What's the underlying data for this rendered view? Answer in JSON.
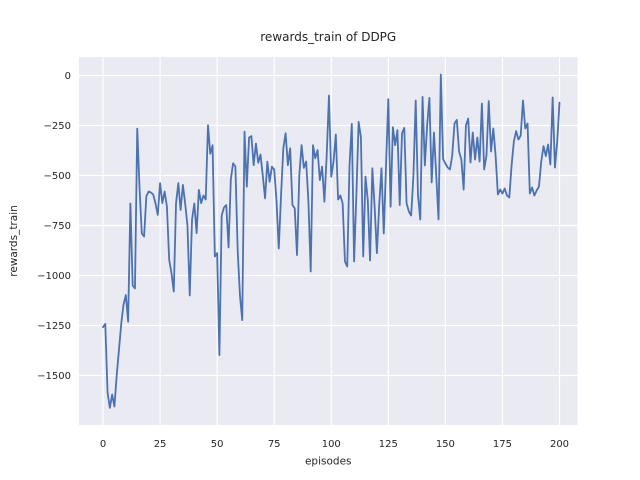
{
  "chart_data": {
    "type": "line",
    "title": "rewards_train of DDPG",
    "xlabel": "episodes",
    "ylabel": "rewards_train",
    "x_tick_labels": [
      "0",
      "25",
      "50",
      "75",
      "100",
      "125",
      "150",
      "175",
      "200"
    ],
    "x_tick_values": [
      0,
      25,
      50,
      75,
      100,
      125,
      150,
      175,
      200
    ],
    "y_tick_labels": [
      "0",
      "−250",
      "−500",
      "−750",
      "−1000",
      "−1250",
      "−1500"
    ],
    "y_tick_values": [
      0,
      -250,
      -500,
      -750,
      -1000,
      -1250,
      -1500
    ],
    "xlim": [
      -10,
      210
    ],
    "ylim": [
      -1750,
      90
    ],
    "grid": true,
    "legend": null,
    "x_start": 0,
    "x_step": 1,
    "series": [
      {
        "name": "rewards_train",
        "values": [
          -1258,
          -1242,
          -1585,
          -1662,
          -1595,
          -1655,
          -1500,
          -1370,
          -1240,
          -1145,
          -1098,
          -1231,
          -640,
          -1050,
          -1065,
          -266,
          -560,
          -790,
          -805,
          -603,
          -580,
          -585,
          -595,
          -640,
          -697,
          -538,
          -638,
          -580,
          -655,
          -922,
          -988,
          -1080,
          -638,
          -538,
          -672,
          -547,
          -640,
          -750,
          -1100,
          -720,
          -640,
          -788,
          -572,
          -638,
          -600,
          -620,
          -249,
          -391,
          -349,
          -905,
          -888,
          -1398,
          -700,
          -660,
          -648,
          -860,
          -520,
          -439,
          -455,
          -873,
          -1100,
          -1223,
          -281,
          -556,
          -310,
          -303,
          -448,
          -340,
          -436,
          -395,
          -500,
          -614,
          -431,
          -531,
          -456,
          -470,
          -623,
          -865,
          -600,
          -364,
          -289,
          -448,
          -364,
          -648,
          -664,
          -898,
          -500,
          -348,
          -462,
          -430,
          -631,
          -980,
          -348,
          -414,
          -373,
          -523,
          -456,
          -631,
          -400,
          -100,
          -506,
          -430,
          -295,
          -620,
          -600,
          -640,
          -930,
          -955,
          -450,
          -242,
          -930,
          -600,
          -232,
          -310,
          -905,
          -505,
          -623,
          -925,
          -464,
          -656,
          -888,
          -650,
          -464,
          -790,
          -450,
          -118,
          -656,
          -258,
          -348,
          -273,
          -648,
          -289,
          -262,
          -639,
          -680,
          -700,
          -500,
          -125,
          -600,
          -720,
          -107,
          -450,
          -250,
          -112,
          -535,
          -285,
          -500,
          -720,
          5,
          -418,
          -440,
          -460,
          -470,
          -400,
          -240,
          -222,
          -380,
          -420,
          -570,
          -250,
          -215,
          -435,
          -285,
          -420,
          -310,
          -430,
          -140,
          -470,
          -400,
          -128,
          -380,
          -265,
          -400,
          -595,
          -570,
          -590,
          -565,
          -600,
          -610,
          -450,
          -330,
          -278,
          -320,
          -300,
          -125,
          -265,
          -240,
          -590,
          -560,
          -600,
          -575,
          -555,
          -430,
          -353,
          -403,
          -345,
          -445,
          -110,
          -460,
          -330,
          -135
        ]
      }
    ],
    "colors": {
      "figure_background": "#ffffff",
      "axes_background": "#eaeaf2",
      "grid": "#ffffff",
      "line": "#4c72b0",
      "text": "#262626"
    }
  }
}
